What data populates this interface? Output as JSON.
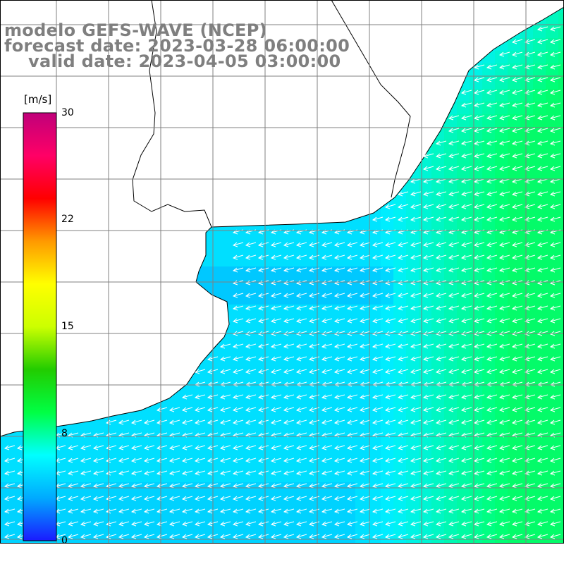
{
  "header": {
    "model": "modelo GEFS-WAVE (NCEP)",
    "forecast": "forecast date: 2023-03-28 06:00:00",
    "valid": "valid date: 2023-04-05 03:00:00"
  },
  "colorbar": {
    "unit": "[m/s]",
    "ticks": [
      "30",
      "22",
      "15",
      "8",
      "0"
    ],
    "range": [
      0,
      30
    ],
    "colors": [
      "#1a1aff",
      "#00aaff",
      "#00ffff",
      "#00ff44",
      "#22cc00",
      "#ccff00",
      "#ffff00",
      "#ff9900",
      "#ff0000",
      "#ff0066",
      "#c0007a"
    ]
  },
  "map": {
    "type": "wind speed field with direction arrows",
    "land_color": "#ffffff",
    "coastline_color": "#000000",
    "grid_color": "#808080",
    "arrow_color": "#ffffff",
    "prevailing_direction": "from east to west"
  }
}
